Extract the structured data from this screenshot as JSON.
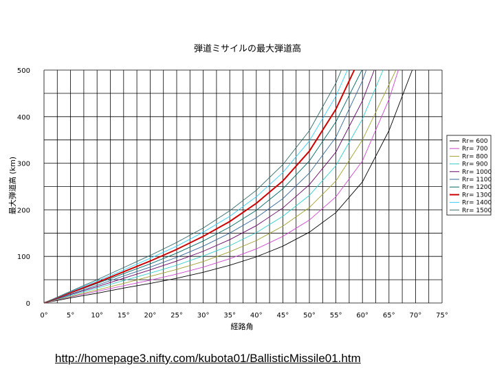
{
  "chart_data": {
    "type": "line",
    "title": "弾道ミサイルの最大弾道高",
    "xlabel": "経路角",
    "ylabel": "最大弾道高 (km)",
    "xlim": [
      0,
      75
    ],
    "ylim": [
      0,
      500
    ],
    "x_ticks": [
      "0°",
      "5°",
      "10°",
      "15°",
      "20°",
      "25°",
      "30°",
      "35°",
      "40°",
      "45°",
      "50°",
      "55°",
      "60°",
      "65°",
      "70°",
      "75°"
    ],
    "y_ticks": [
      "0",
      "100",
      "200",
      "300",
      "400",
      "500"
    ],
    "grid": true,
    "legend_position": "right",
    "x": [
      0,
      5,
      10,
      15,
      20,
      25,
      30,
      35,
      40,
      45,
      50,
      55,
      60,
      65,
      70,
      75
    ],
    "series": [
      {
        "name": "Rr= 600",
        "color": "#000000",
        "values": [
          0,
          11,
          21,
          32,
          42,
          53,
          66,
          81,
          99,
          122,
          152,
          194,
          260,
          370,
          null,
          null
        ]
      },
      {
        "name": "Rr= 700",
        "color": "#cc44cc",
        "values": [
          0,
          13,
          25,
          37,
          49,
          62,
          77,
          95,
          116,
          143,
          178,
          228,
          305,
          437,
          null,
          null
        ]
      },
      {
        "name": "Rr= 800",
        "color": "#a0a030",
        "values": [
          0,
          14,
          28,
          42,
          57,
          72,
          89,
          110,
          134,
          165,
          205,
          262,
          350,
          null,
          null,
          null
        ]
      },
      {
        "name": "Rr= 900",
        "color": "#33cccc",
        "values": [
          0,
          16,
          32,
          48,
          64,
          81,
          101,
          123,
          151,
          186,
          231,
          295,
          395,
          null,
          null,
          null
        ]
      },
      {
        "name": "Rr= 1000",
        "color": "#660066",
        "values": [
          0,
          18,
          35,
          53,
          71,
          90,
          111,
          136,
          166,
          204,
          254,
          324,
          434,
          null,
          null,
          null
        ]
      },
      {
        "name": "Rr= 1100",
        "color": "#336699",
        "values": [
          0,
          19,
          38,
          58,
          77,
          98,
          122,
          150,
          183,
          224,
          279,
          356,
          477,
          null,
          null,
          null
        ]
      },
      {
        "name": "Rr= 1200",
        "color": "#006666",
        "values": [
          0,
          21,
          42,
          63,
          84,
          107,
          133,
          163,
          199,
          245,
          305,
          389,
          null,
          null,
          null,
          null
        ]
      },
      {
        "name": "Rr= 1300",
        "color": "#cc0000",
        "values": [
          0,
          22,
          44,
          67,
          90,
          115,
          143,
          175,
          214,
          262,
          326,
          416,
          null,
          null,
          null,
          null
        ]
      },
      {
        "name": "Rr= 1400",
        "color": "#33ccff",
        "values": [
          0,
          24,
          47,
          71,
          96,
          122,
          152,
          186,
          228,
          280,
          348,
          444,
          null,
          null,
          null,
          null
        ]
      },
      {
        "name": "Rr= 1500",
        "color": "#336666",
        "values": [
          0,
          25,
          50,
          76,
          102,
          130,
          161,
          198,
          242,
          297,
          370,
          472,
          null,
          null,
          null,
          null
        ]
      }
    ]
  },
  "footer": {
    "url": "http://homepage3.nifty.com/kubota01/BallisticMissile01.htm"
  }
}
